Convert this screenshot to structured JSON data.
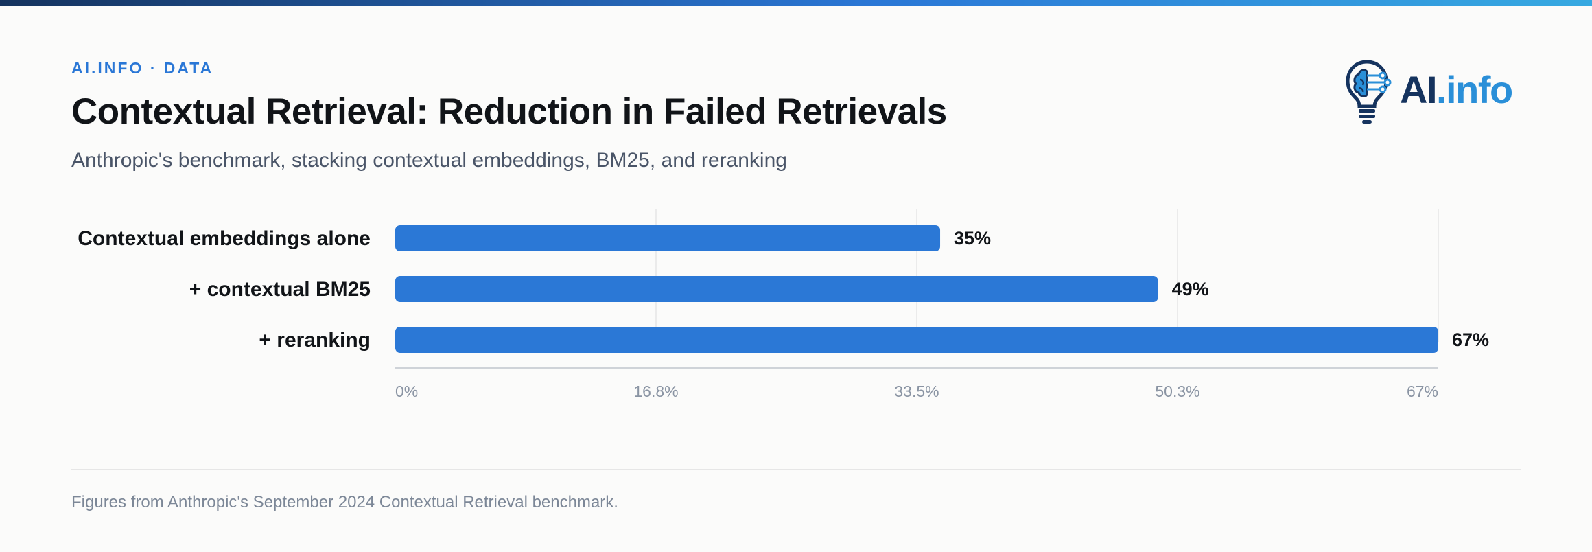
{
  "header": {
    "eyebrow": "AI.INFO · DATA",
    "title": "Contextual Retrieval: Reduction in Failed Retrievals",
    "subtitle": "Anthropic's benchmark, stacking contextual embeddings, BM25, and reranking"
  },
  "logo": {
    "text_ai": "AI",
    "text_info": ".info",
    "icon": "lightbulb-brain-circuit-icon"
  },
  "footnote": "Figures from Anthropic's September 2024 Contextual Retrieval benchmark.",
  "colors": {
    "bar": "#2b78d6",
    "accent": "#2a77d6",
    "brand_dark": "#15335e",
    "brand_light": "#2a8fd8"
  },
  "chart_data": {
    "type": "bar",
    "orientation": "horizontal",
    "categories": [
      "Contextual embeddings alone",
      "+ contextual BM25",
      "+ reranking"
    ],
    "values": [
      35,
      49,
      67
    ],
    "value_labels": [
      "35%",
      "49%",
      "67%"
    ],
    "x_ticks": [
      "0%",
      "16.8%",
      "33.5%",
      "50.3%",
      "67%"
    ],
    "xlim": [
      0,
      67
    ],
    "grid": true
  }
}
